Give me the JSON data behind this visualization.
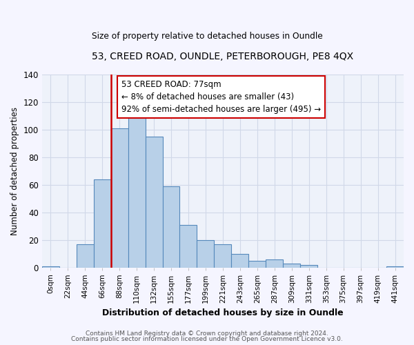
{
  "title1": "53, CREED ROAD, OUNDLE, PETERBOROUGH, PE8 4QX",
  "title2": "Size of property relative to detached houses in Oundle",
  "xlabel": "Distribution of detached houses by size in Oundle",
  "ylabel": "Number of detached properties",
  "annotation_line1": "53 CREED ROAD: 77sqm",
  "annotation_line2": "← 8% of detached houses are smaller (43)",
  "annotation_line3": "92% of semi-detached houses are larger (495) →",
  "bar_labels": [
    "0sqm",
    "22sqm",
    "44sqm",
    "66sqm",
    "88sqm",
    "110sqm",
    "132sqm",
    "155sqm",
    "177sqm",
    "199sqm",
    "221sqm",
    "243sqm",
    "265sqm",
    "287sqm",
    "309sqm",
    "331sqm",
    "353sqm",
    "375sqm",
    "397sqm",
    "419sqm",
    "441sqm"
  ],
  "bar_values": [
    1,
    0,
    17,
    64,
    101,
    113,
    95,
    59,
    31,
    20,
    17,
    10,
    5,
    6,
    3,
    2,
    0,
    0,
    0,
    0,
    1
  ],
  "bar_color": "#b8d0e8",
  "bar_edge_color": "#5588bb",
  "red_line_index": 4,
  "highlight_color": "#cc0000",
  "grid_color": "#d0d8e8",
  "background_color": "#e8eef8",
  "plot_bg_color": "#eef2fa",
  "annotation_box_color": "#ffffff",
  "annotation_box_edge": "#cc0000",
  "ylim": [
    0,
    140
  ],
  "yticks": [
    0,
    20,
    40,
    60,
    80,
    100,
    120,
    140
  ],
  "fig_bg_color": "#f5f5ff",
  "footer1": "Contains HM Land Registry data © Crown copyright and database right 2024.",
  "footer2": "Contains public sector information licensed under the Open Government Licence v3.0."
}
